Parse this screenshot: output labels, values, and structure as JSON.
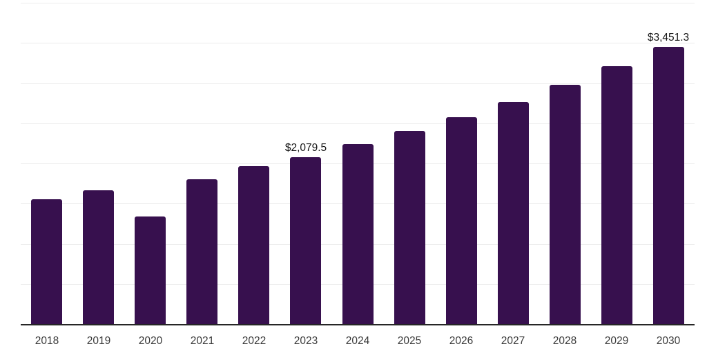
{
  "chart_data": {
    "type": "bar",
    "title": "",
    "xlabel": "",
    "ylabel": "",
    "legend_position": "none",
    "grid": "horizontal",
    "categories": [
      "2018",
      "2019",
      "2020",
      "2021",
      "2022",
      "2023",
      "2024",
      "2025",
      "2026",
      "2027",
      "2028",
      "2029",
      "2030"
    ],
    "values": [
      1554,
      1665,
      1341,
      1802,
      1964,
      2079.5,
      2238,
      2400,
      2579,
      2767,
      2980,
      3211,
      3451.3
    ],
    "labeled_points": [
      {
        "category": "2023",
        "label": "$2,079.5"
      },
      {
        "category": "2030",
        "label": "$3,451.3"
      }
    ],
    "ylim": [
      0,
      4000
    ],
    "gridline_step": 500,
    "colors": {
      "bar": "#37104E",
      "gridline": "#ececec",
      "axis": "#262626",
      "tick_label": "#3a3a3a",
      "data_label": "#141414",
      "background": "#ffffff"
    }
  }
}
